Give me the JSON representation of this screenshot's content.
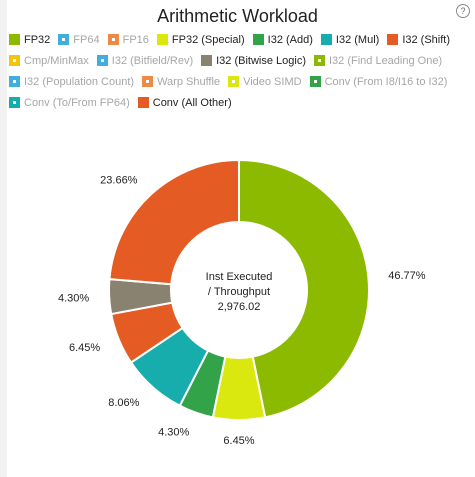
{
  "header": {
    "title": "Arithmetic Workload",
    "help_glyph": "?"
  },
  "legend": [
    {
      "label": "FP32",
      "color": "#8cba00",
      "active": true
    },
    {
      "label": "FP64",
      "color": "#41aee0",
      "active": false
    },
    {
      "label": "FP16",
      "color": "#ef8a45",
      "active": false
    },
    {
      "label": "FP32 (Special)",
      "color": "#dbe80f",
      "active": true
    },
    {
      "label": "I32 (Add)",
      "color": "#32a348",
      "active": true
    },
    {
      "label": "I32 (Mul)",
      "color": "#18adad",
      "active": true
    },
    {
      "label": "I32 (Shift)",
      "color": "#e55b24",
      "active": true
    },
    {
      "label": "Cmp/MinMax",
      "color": "#f2c40b",
      "active": false
    },
    {
      "label": "I32 (Bitfield/Rev)",
      "color": "#41aee0",
      "active": false
    },
    {
      "label": "I32 (Bitwise Logic)",
      "color": "#8a8270",
      "active": true
    },
    {
      "label": "I32 (Find Leading One)",
      "color": "#8cba00",
      "active": false
    },
    {
      "label": "I32 (Population Count)",
      "color": "#41aee0",
      "active": false
    },
    {
      "label": "Warp Shuffle",
      "color": "#ef8a45",
      "active": false
    },
    {
      "label": "Video SIMD",
      "color": "#dbe80f",
      "active": false
    },
    {
      "label": "Conv (From I8/I16 to I32)",
      "color": "#32a348",
      "active": false
    },
    {
      "label": "Conv (To/From FP64)",
      "color": "#18adad",
      "active": false
    },
    {
      "label": "Conv (All Other)",
      "color": "#e55b24",
      "active": true
    }
  ],
  "chart_data": {
    "type": "pie",
    "variant": "donut",
    "title": "Arithmetic Workload",
    "center_label_lines": [
      "Inst Executed",
      "/ Throughput",
      "2,976.02"
    ],
    "slices": [
      {
        "name": "FP32",
        "value": 46.77,
        "label": "46.77%",
        "color": "#8cba00"
      },
      {
        "name": "FP32 (Special)",
        "value": 6.45,
        "label": "6.45%",
        "color": "#dbe80f"
      },
      {
        "name": "I32 (Add)",
        "value": 4.3,
        "label": "4.30%",
        "color": "#32a348"
      },
      {
        "name": "I32 (Mul)",
        "value": 8.06,
        "label": "8.06%",
        "color": "#18adad"
      },
      {
        "name": "I32 (Shift)",
        "value": 6.45,
        "label": "6.45%",
        "color": "#e55b24"
      },
      {
        "name": "I32 (Bitwise Logic)",
        "value": 4.3,
        "label": "4.30%",
        "color": "#8a8270"
      },
      {
        "name": "Conv (All Other)",
        "value": 23.66,
        "label": "23.66%",
        "color": "#e55b24"
      }
    ]
  }
}
